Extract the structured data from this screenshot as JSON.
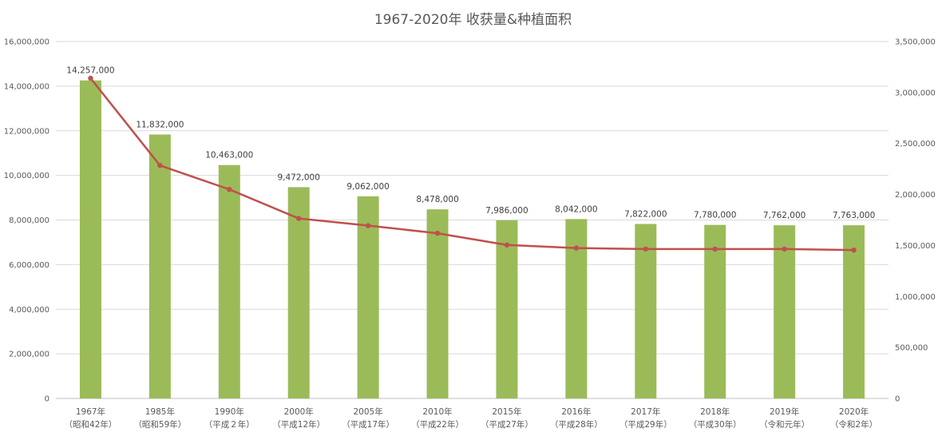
{
  "chart_data": {
    "type": "bar",
    "title": "1967-2020年 收获量&种植面积",
    "categories": [
      {
        "year": "1967年",
        "era": "（昭和42年）"
      },
      {
        "year": "1985年",
        "era": "（昭和59年）"
      },
      {
        "year": "1990年",
        "era": "（平成２年）"
      },
      {
        "year": "2000年",
        "era": "（平成12年）"
      },
      {
        "year": "2005年",
        "era": "（平成17年）"
      },
      {
        "year": "2010年",
        "era": "（平成22年）"
      },
      {
        "year": "2015年",
        "era": "（平成27年）"
      },
      {
        "year": "2016年",
        "era": "（平成28年）"
      },
      {
        "year": "2017年",
        "era": "（平成29年）"
      },
      {
        "year": "2018年",
        "era": "（平成30年）"
      },
      {
        "year": "2019年",
        "era": "（令和元年）"
      },
      {
        "year": "2020年",
        "era": "（令和2年）"
      }
    ],
    "series": [
      {
        "type": "bar",
        "axis": "left",
        "color": "#9BBB59",
        "values": [
          14257000,
          11832000,
          10463000,
          9472000,
          9062000,
          8478000,
          7986000,
          8042000,
          7822000,
          7780000,
          7762000,
          7763000
        ],
        "labels": [
          "14,257,000",
          "11,832,000",
          "10,463,000",
          "9,472,000",
          "9,062,000",
          "8,478,000",
          "7,986,000",
          "8,042,000",
          "7,822,000",
          "7,780,000",
          "7,762,000",
          "7,763,000"
        ]
      },
      {
        "type": "line",
        "axis": "right",
        "color": "#C0504D",
        "values": [
          3140000,
          2285000,
          2050000,
          1765000,
          1695000,
          1620000,
          1505000,
          1475000,
          1465000,
          1465000,
          1465000,
          1455000
        ]
      }
    ],
    "y_left": {
      "lim": [
        0,
        16000000
      ],
      "ticks": [
        0,
        2000000,
        4000000,
        6000000,
        8000000,
        10000000,
        12000000,
        14000000,
        16000000
      ],
      "tick_labels": [
        "0",
        "2,000,000",
        "4,000,000",
        "6,000,000",
        "8,000,000",
        "10,000,000",
        "12,000,000",
        "14,000,000",
        "16,000,000"
      ]
    },
    "y_right": {
      "lim": [
        0,
        3500000
      ],
      "ticks": [
        0,
        500000,
        1000000,
        1500000,
        2000000,
        2500000,
        3000000,
        3500000
      ],
      "tick_labels": [
        "0",
        "500,000",
        "1,000,000",
        "1,500,000",
        "2,000,000",
        "2,500,000",
        "3,000,000",
        "3,500,000"
      ]
    },
    "grid": true,
    "legend": "none"
  }
}
